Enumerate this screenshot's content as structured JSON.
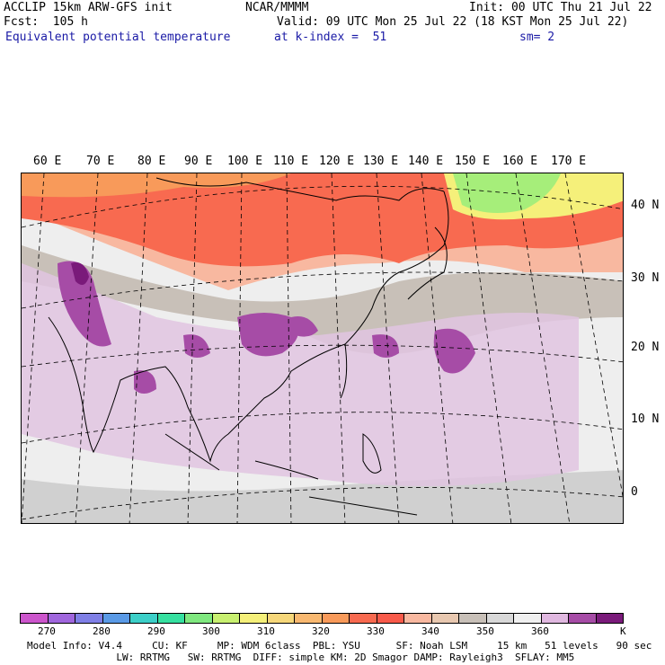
{
  "header": {
    "model": "ACCLIP 15km ARW-GFS init",
    "center": "NCAR/MMMM",
    "init": "Init: 00 UTC Thu 21 Jul 22",
    "fcst": "Fcst:  105 h",
    "valid": "Valid: 09 UTC Mon 25 Jul 22 (18 KST Mon 25 Jul 22)",
    "field": "Equivalent potential temperature",
    "level": "at k-index =  51",
    "smooth": "sm= 2"
  },
  "lon_labels": [
    "60 E",
    "70 E",
    "80 E",
    "90 E",
    "100 E",
    "110 E",
    "120 E",
    "130 E",
    "140 E",
    "150 E",
    "160 E",
    "170 E"
  ],
  "lat_labels": [
    "40 N",
    "30 N",
    "20 N",
    "10 N",
    "0"
  ],
  "colorbar": {
    "colors": [
      "#cc55cc",
      "#a066dd",
      "#7f7fe6",
      "#5a9ae6",
      "#3ccfc8",
      "#36e0a0",
      "#7fe87f",
      "#c8f070",
      "#f5f07a",
      "#f6d77a",
      "#f8b870",
      "#f89a5a",
      "#f86a50",
      "#f85a4a",
      "#f8b8a0",
      "#e8c8b0",
      "#c8c0b8",
      "#d8d8d8",
      "#f0f0f0",
      "#e0b8e0",
      "#a64ca6",
      "#7a1a7a"
    ],
    "labels": [
      "270",
      "280",
      "290",
      "300",
      "310",
      "320",
      "330",
      "340",
      "350",
      "360",
      "K"
    ]
  },
  "footer": {
    "line1": "Model Info: V4.4     CU: KF     MP: WDM 6class  PBL: YSU      SF: Noah LSM     15 km   51 levels   90 sec",
    "line2": "               LW: RRTMG   SW: RRTMG  DIFF: simple KM: 2D Smagor DAMP: Rayleigh3  SFLAY: MM5"
  }
}
